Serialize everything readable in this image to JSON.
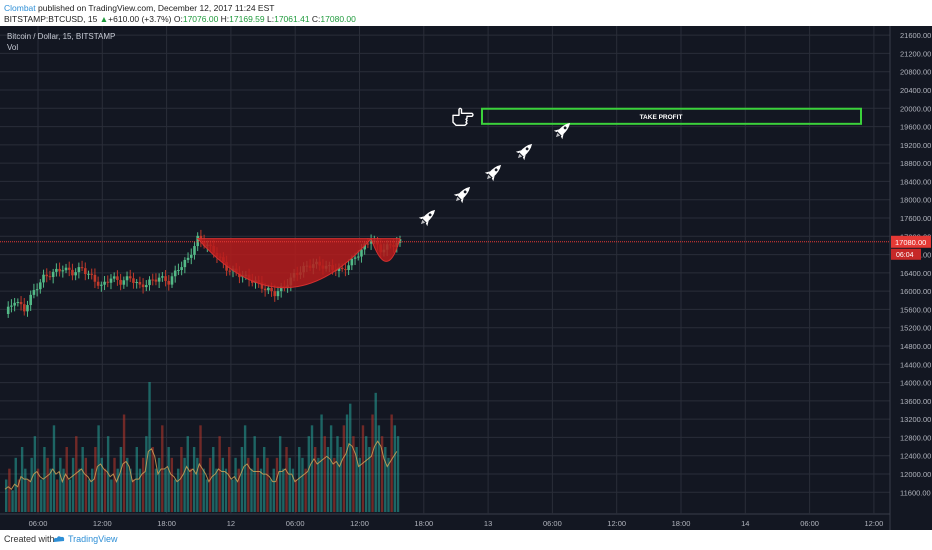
{
  "header": {
    "author": "Clombat",
    "published_text": " published on TradingView.com, December 12, 2017 11:24 EST",
    "symbol": "BITSTAMP:BTCUSD, 15",
    "change_arrow": "▲",
    "change": "+610.00 (+3.7%)",
    "ohlc": [
      {
        "label": "O:",
        "value": "17076.00"
      },
      {
        "label": "H:",
        "value": "17169.59"
      },
      {
        "label": "L:",
        "value": "17061.41"
      },
      {
        "label": "C:",
        "value": "17080.00"
      }
    ]
  },
  "legend": {
    "title": "Bitcoin / Dollar, 15, BITSTAMP",
    "volume": "Vol"
  },
  "annotations": {
    "take_profit": "TAKE PROFIT",
    "take_profit_range": [
      19660,
      19990
    ],
    "hand_icon": "pointing-hand-icon",
    "rocket_icon": "rocket-icon",
    "rocket_count": 5,
    "cup_shape": "cup-and-handle"
  },
  "colors": {
    "background": "#131722",
    "grid": "#2a2e39",
    "up": "#26a69a",
    "up_price": "#53b987",
    "down": "#c0392b",
    "cup_fill": "#b71c1c",
    "take_profit_border": "#3bd13b",
    "price_line": "#e53935"
  },
  "footer": {
    "created_with": "Created with",
    "brand": "TradingView"
  },
  "chart_data": {
    "type": "candlestick",
    "title": "Bitcoin / Dollar, 15, BITSTAMP",
    "ylim": [
      11300,
      21800
    ],
    "y_ticks": [
      "21600.00",
      "21200.00",
      "20800.00",
      "20400.00",
      "20000.00",
      "19600.00",
      "19200.00",
      "18800.00",
      "18400.00",
      "18000.00",
      "17600.00",
      "17200.00",
      "16800.00",
      "16400.00",
      "16000.00",
      "15600.00",
      "15200.00",
      "14800.00",
      "14400.00",
      "14000.00",
      "13600.00",
      "13200.00",
      "12800.00",
      "12400.00",
      "12000.00",
      "11600.00"
    ],
    "x_ticks": [
      "06:00",
      "12:00",
      "18:00",
      "12",
      "06:00",
      "12:00",
      "18:00",
      "13",
      "06:00",
      "12:00",
      "18:00",
      "14",
      "06:00",
      "12:00"
    ],
    "current_price": "17080.00",
    "countdown": "06:04",
    "price_path": [
      [
        0,
        15500
      ],
      [
        3,
        15800
      ],
      [
        6,
        15600
      ],
      [
        9,
        16000
      ],
      [
        12,
        16300
      ],
      [
        15,
        16400
      ],
      [
        18,
        16500
      ],
      [
        21,
        16400
      ],
      [
        24,
        16500
      ],
      [
        27,
        16300
      ],
      [
        30,
        16100
      ],
      [
        33,
        16300
      ],
      [
        36,
        16200
      ],
      [
        39,
        16300
      ],
      [
        42,
        16100
      ],
      [
        45,
        16200
      ],
      [
        48,
        16300
      ],
      [
        51,
        16200
      ],
      [
        54,
        16500
      ],
      [
        57,
        16700
      ],
      [
        60,
        17150
      ],
      [
        63,
        17000
      ],
      [
        66,
        16800
      ],
      [
        69,
        16500
      ],
      [
        72,
        16400
      ],
      [
        75,
        16300
      ],
      [
        78,
        16200
      ],
      [
        81,
        16050
      ],
      [
        84,
        15950
      ],
      [
        87,
        16100
      ],
      [
        90,
        16350
      ],
      [
        93,
        16500
      ],
      [
        96,
        16600
      ],
      [
        99,
        16550
      ],
      [
        102,
        16500
      ],
      [
        105,
        16450
      ],
      [
        108,
        16650
      ],
      [
        111,
        16900
      ],
      [
        114,
        17150
      ],
      [
        117,
        16900
      ],
      [
        120,
        17000
      ],
      [
        123,
        17080
      ]
    ],
    "volume": [
      3,
      4,
      2,
      5,
      3,
      6,
      4,
      3,
      5,
      7,
      4,
      3,
      6,
      5,
      4,
      8,
      3,
      5,
      4,
      6,
      3,
      5,
      7,
      4,
      6,
      5,
      3,
      4,
      6,
      8,
      5,
      4,
      7,
      3,
      5,
      4,
      6,
      9,
      5,
      4,
      3,
      6,
      4,
      5,
      7,
      12,
      6,
      4,
      5,
      8,
      4,
      6,
      5,
      3,
      4,
      6,
      5,
      7,
      4,
      6,
      5,
      8,
      4,
      3,
      5,
      6,
      4,
      7,
      5,
      4,
      6,
      3,
      5,
      4,
      6,
      8,
      5,
      4,
      7,
      5,
      4,
      6,
      5,
      3,
      4,
      5,
      7,
      4,
      6,
      5,
      4,
      3,
      6,
      5,
      4,
      7,
      8,
      6,
      5,
      9,
      7,
      6,
      8,
      5,
      7,
      6,
      8,
      9,
      10,
      7,
      6,
      5,
      8,
      7,
      6,
      9,
      11,
      8,
      7,
      6,
      5,
      9,
      8,
      7
    ]
  }
}
